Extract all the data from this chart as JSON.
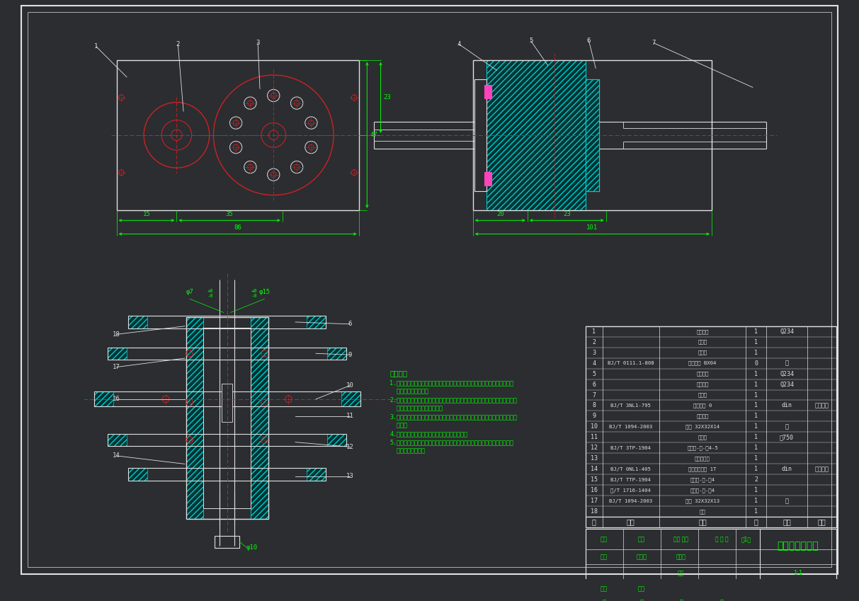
{
  "bg_color": "#2b2d31",
  "green": "#00ff00",
  "red": "#cc2222",
  "white": "#e0e0e0",
  "cyan": "#00cccc",
  "magenta": "#ff44bb",
  "dark_cyan_fill": "#003333",
  "title": "楼梯清扫机器人",
  "notes_title": "技术要求",
  "notes": [
    "1.装入滚动轴承件及配件（包括外端盖、内端盖），检查端具有检验密门联合",
    "  管径力量进行密封。",
    "2.零件全部经过必要精密制整情况下清，不得有划痕、飞边、氧化皮、锈蚀、铸",
    "  屑、毛刺、锐利边缘和毛刺。",
    "3.检定量检对零，部件的主观配合尺寸，按规范内精密配合尺寸及相关精度要行",
    "  进行。",
    "4.检视注明中零件不允许锻、磨、敲打和锤击。",
    "5.所有，提轴合轴密整期间，严禁打边或夹取不合适的夹具和板手，整圈后都",
    "  检查、整密轴线。"
  ]
}
